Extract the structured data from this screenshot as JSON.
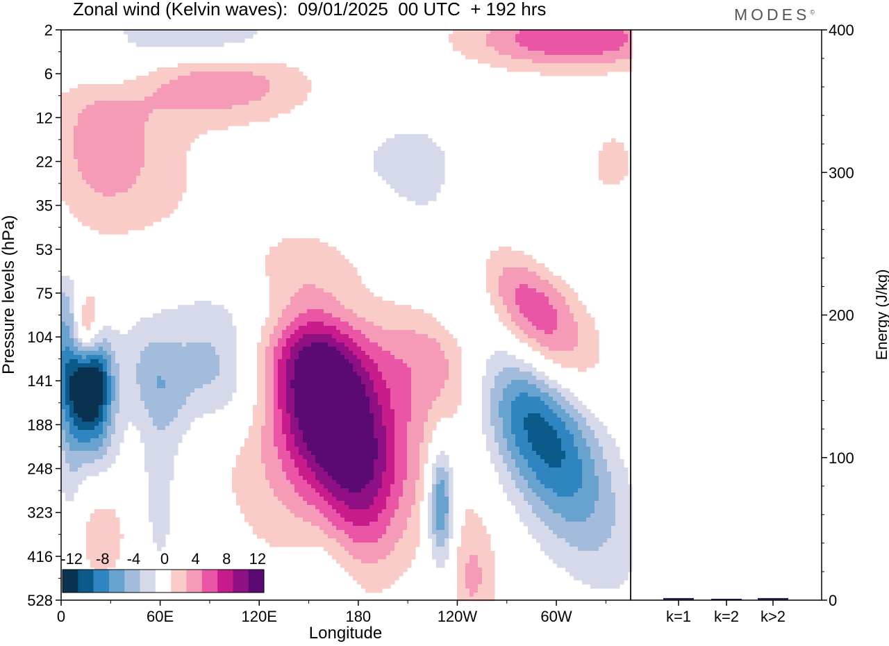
{
  "title": "Zonal wind (Kelvin waves):  09/01/2025  00 UTC  + 192 hrs",
  "logo": "MODES",
  "logo_mark": "©",
  "colors": {
    "neg": [
      "#08324f",
      "#0c5a89",
      "#2e85c0",
      "#68a2cf",
      "#a3bcdb",
      "#d5d9ea"
    ],
    "zero": "#ffffff",
    "pos": [
      "#f9ccc8",
      "#f59bb7",
      "#ea55a6",
      "#c81c8c",
      "#8f1082",
      "#5a0a72"
    ]
  },
  "chart_data": [
    {
      "type": "heatmap",
      "title": "Zonal wind (Kelvin waves):  09/01/2025  00 UTC  + 192 hrs",
      "xlabel": "Longitude",
      "ylabel": "Pressure levels (hPa)",
      "x_ticks": [
        "0",
        "60E",
        "120E",
        "180",
        "120W",
        "60W"
      ],
      "x_tick_values": [
        0,
        60,
        120,
        180,
        240,
        300
      ],
      "xlim": [
        0,
        345
      ],
      "y_ticks": [
        "2",
        "6",
        "12",
        "22",
        "35",
        "53",
        "75",
        "104",
        "141",
        "188",
        "248",
        "323",
        "416",
        "528"
      ],
      "y_order": "top-to-bottom",
      "colorbar": {
        "tick_labels": [
          "-12",
          "-8",
          "-4",
          "0",
          "4",
          "8",
          "12"
        ],
        "levels": [
          -14,
          -12,
          -10,
          -8,
          -6,
          -4,
          -2,
          2,
          4,
          6,
          8,
          10,
          12,
          14
        ]
      },
      "blobs": [
        {
          "lon": 12,
          "lev": 8.2,
          "rlon": 12,
          "rlev": 1.1,
          "peak": -13,
          "tilt": 0.4
        },
        {
          "lon": 22,
          "lev": 7.9,
          "rlon": 7,
          "rlev": 0.7,
          "peak": -6
        },
        {
          "lon": 56,
          "lev": 8.0,
          "rlon": 14,
          "rlev": 0.9,
          "peak": -4,
          "tilt": 0.6
        },
        {
          "lon": 95,
          "lev": 7.8,
          "rlon": 22,
          "rlev": 1.0,
          "peak": -6,
          "tilt": 0.5
        },
        {
          "lon": 140,
          "lev": 6.4,
          "rlon": 45,
          "rlev": 0.6,
          "peak": -3,
          "tilt": 0.4
        },
        {
          "lon": 4,
          "lev": 6.2,
          "rlon": 7,
          "rlev": 0.6,
          "peak": -3
        },
        {
          "lon": 15,
          "lev": 6.8,
          "rlon": 6,
          "rlev": 0.6,
          "peak": 8
        },
        {
          "lon": 60,
          "lev": 10.5,
          "rlon": 10,
          "rlev": 1.8,
          "peak": -3
        },
        {
          "lon": 5,
          "lev": 10.2,
          "rlon": 6,
          "rlev": 1.2,
          "peak": -2.5
        },
        {
          "lon": 158,
          "lev": 8.2,
          "rlon": 20,
          "rlev": 1.5,
          "peak": 11,
          "tilt": 0.4
        },
        {
          "lon": 150,
          "lev": 8.6,
          "rlon": 42,
          "rlev": 2.4,
          "peak": 5
        },
        {
          "lon": 183,
          "lev": 10.4,
          "rlon": 16,
          "rlev": 1.4,
          "peak": 4.5
        },
        {
          "lon": 200,
          "lev": 9.6,
          "rlon": 38,
          "rlev": 1.8,
          "peak": 3
        },
        {
          "lon": 245,
          "lev": 7.4,
          "rlon": 30,
          "rlev": 1.0,
          "peak": 6,
          "tilt": 0.6
        },
        {
          "lon": 282,
          "lev": 6.4,
          "rlon": 22,
          "rlev": 1.3,
          "peak": 11,
          "tilt": 1.1
        },
        {
          "lon": 283,
          "lev": 8.5,
          "rlon": 24,
          "rlev": 2.2,
          "peak": -13,
          "tilt": 1.1
        },
        {
          "lon": 230,
          "lev": 10.8,
          "rlon": 6,
          "rlev": 1.0,
          "peak": -10
        },
        {
          "lon": 250,
          "lev": 12.5,
          "rlon": 10,
          "rlev": 1.0,
          "peak": 4
        },
        {
          "lon": 160,
          "lev": 12.5,
          "rlon": 14,
          "rlev": 1.0,
          "peak": -2.5
        },
        {
          "lon": 25,
          "lev": 11.5,
          "rlon": 12,
          "rlev": 0.8,
          "peak": 3.5
        },
        {
          "lon": 290,
          "lev": 4.5,
          "rlon": 28,
          "rlev": 0.9,
          "peak": -4,
          "tilt": 0.7
        },
        {
          "lon": 285,
          "lev": 3.5,
          "rlon": 28,
          "rlev": 0.8,
          "peak": 4,
          "tilt": 0.6
        },
        {
          "lon": 45,
          "lev": 3.0,
          "rlon": 30,
          "rlev": 1.3,
          "peak": 3,
          "tilt": 0.6
        },
        {
          "lon": 95,
          "lev": 1.1,
          "rlon": 40,
          "rlev": 0.7,
          "peak": 6,
          "tilt": 0.5
        },
        {
          "lon": 20,
          "lev": 2.6,
          "rlon": 20,
          "rlev": 1.5,
          "peak": 3
        },
        {
          "lon": 80,
          "lev": 0.2,
          "rlon": 40,
          "rlev": 0.5,
          "peak": -6,
          "tilt": 0.3
        },
        {
          "lon": 310,
          "lev": 0.2,
          "rlon": 45,
          "rlev": 0.5,
          "peak": 8
        },
        {
          "lon": 215,
          "lev": 3.0,
          "rlon": 40,
          "rlev": 0.9,
          "peak": -2.5
        },
        {
          "lon": 335,
          "lev": 3.0,
          "rlon": 8,
          "rlev": 0.5,
          "peak": 3
        },
        {
          "lon": 30,
          "lev": 1.0,
          "rlon": 20,
          "rlev": 0.4,
          "peak": -2.5
        }
      ]
    },
    {
      "type": "bar",
      "categories": [
        "k=1",
        "k=2",
        "k>2"
      ],
      "values": [
        1,
        0.5,
        1
      ],
      "ylabel": "Energy (J/kg)",
      "ylim": [
        0,
        400
      ],
      "y_ticks": [
        "0",
        "100",
        "200",
        "300",
        "400"
      ],
      "y_tick_values": [
        0,
        100,
        200,
        300,
        400
      ],
      "bar_color": "#2a2a55"
    }
  ]
}
